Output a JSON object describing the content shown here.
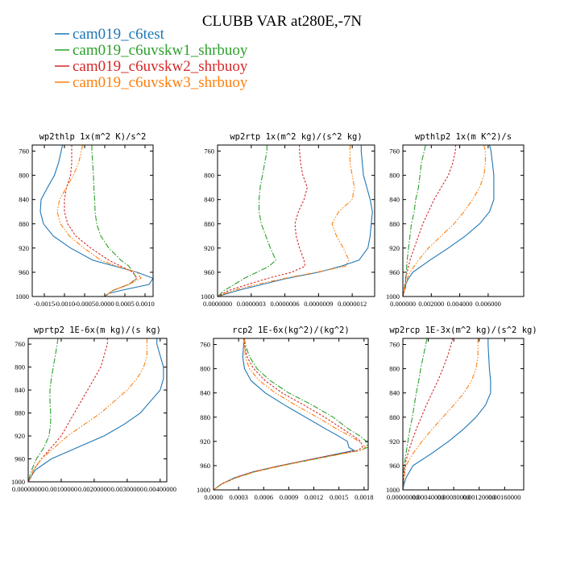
{
  "figure": {
    "title": "CLUBB VAR at280E,-7N"
  },
  "legend": [
    {
      "name": "cam019_c6test",
      "color": "#1f77b4"
    },
    {
      "name": "cam019_c6uvskw1_shrbuoy",
      "color": "#2ca02c"
    },
    {
      "name": "cam019_c6uvskw2_shrbuoy",
      "color": "#d62728"
    },
    {
      "name": "cam019_c6uvskw3_shrbuoy",
      "color": "#ff7f0e"
    }
  ],
  "chart_data": [
    {
      "type": "line",
      "title": "wp2thlp  1x(m^2 K)/s^2",
      "xlim": [
        -0.0018,
        0.0012
      ],
      "ylim": [
        1000,
        750
      ],
      "y_reversed": true,
      "xticks": [
        -0.0015,
        -0.001,
        -0.0005,
        0.0,
        0.0005,
        0.001
      ],
      "xtick_labels": [
        "-0.0015",
        "-0.0010",
        "-0.0005",
        "0.0000",
        "0.0005",
        "0.0010"
      ],
      "yticks": [
        760,
        800,
        840,
        880,
        920,
        960,
        1000
      ],
      "ytick_labels": [
        "760",
        "800",
        "840",
        "880",
        "920",
        "960",
        "1000"
      ],
      "y": [
        750,
        760,
        780,
        800,
        820,
        840,
        860,
        880,
        900,
        920,
        940,
        950,
        960,
        970,
        980,
        990,
        995,
        1000
      ],
      "series": [
        {
          "values": [
            -0.00105,
            -0.00108,
            -0.00115,
            -0.00125,
            -0.00142,
            -0.00158,
            -0.0016,
            -0.00152,
            -0.00128,
            -0.00085,
            -0.0003,
            0.00025,
            0.0008,
            0.0012,
            0.0011,
            0.0004,
            0.0001,
            0.0
          ]
        },
        {
          "values": [
            -0.00032,
            -0.00032,
            -0.0003,
            -0.00028,
            -0.00027,
            -0.00025,
            -0.00024,
            -0.0002,
            -0.0001,
            0.0001,
            0.0004,
            0.0006,
            0.0007,
            0.0008,
            0.0006,
            0.0002,
            0.0001,
            0.0
          ]
        },
        {
          "values": [
            -0.00082,
            -0.00082,
            -0.00082,
            -0.00085,
            -0.00095,
            -0.001,
            -0.001,
            -0.00092,
            -0.00072,
            -0.00035,
            0.0001,
            0.0004,
            0.0007,
            0.0008,
            0.0006,
            0.0002,
            0.0001,
            0.0
          ]
        },
        {
          "values": [
            -0.00055,
            -0.00058,
            -0.00065,
            -0.00078,
            -0.00095,
            -0.00112,
            -0.00118,
            -0.0011,
            -0.00088,
            -0.00052,
            -0.0001,
            0.0003,
            0.0008,
            0.0009,
            0.0006,
            0.0002,
            0.0001,
            0.0
          ]
        }
      ]
    },
    {
      "type": "line",
      "title": "wp2rtp  1x(m^2 kg)/(s^2 kg)",
      "xlim": [
        0.0,
        1.4e-06
      ],
      "ylim": [
        1000,
        750
      ],
      "y_reversed": true,
      "xticks": [
        0.0,
        3e-07,
        6e-07,
        9e-07,
        1.2e-06
      ],
      "xtick_labels": [
        "0.0000000",
        "0.0000003",
        "0.0000006",
        "0.0000009",
        "0.0000012"
      ],
      "yticks": [
        760,
        800,
        840,
        880,
        920,
        960,
        1000
      ],
      "ytick_labels": [
        "760",
        "800",
        "840",
        "880",
        "920",
        "960",
        "1000"
      ],
      "y": [
        750,
        760,
        780,
        800,
        820,
        840,
        860,
        880,
        900,
        920,
        940,
        950,
        960,
        970,
        980,
        990,
        1000
      ],
      "series": [
        {
          "values": [
            1.28e-06,
            1.28e-06,
            1.29e-06,
            1.3e-06,
            1.33e-06,
            1.36e-06,
            1.38e-06,
            1.37e-06,
            1.36e-06,
            1.34e-06,
            1.26e-06,
            1.1e-06,
            9e-07,
            6.2e-07,
            4e-07,
            1.8e-07,
            0.0
          ]
        },
        {
          "values": [
            4.4e-07,
            4.4e-07,
            4.2e-07,
            4e-07,
            3.8e-07,
            3.7e-07,
            3.7e-07,
            3.9e-07,
            4.3e-07,
            4.7e-07,
            5.2e-07,
            4.6e-07,
            3.5e-07,
            2.4e-07,
            1.5e-07,
            6e-08,
            0.0
          ]
        },
        {
          "values": [
            7.3e-07,
            7.3e-07,
            7.4e-07,
            7.6e-07,
            8e-07,
            7.7e-07,
            7.2e-07,
            6.9e-07,
            7e-07,
            7.3e-07,
            7.7e-07,
            7.8e-07,
            6.6e-07,
            4.5e-07,
            2.7e-07,
            1e-07,
            0.0
          ]
        },
        {
          "values": [
            1.18e-06,
            1.18e-06,
            1.18e-06,
            1.2e-06,
            1.22e-06,
            1.2e-06,
            1.08e-06,
            1.02e-06,
            1.06e-06,
            1.12e-06,
            1.17e-06,
            1.14e-06,
            8.8e-07,
            6e-07,
            3.5e-07,
            1.4e-07,
            0.0
          ]
        }
      ]
    },
    {
      "type": "line",
      "title": "wpthlp2  1x(m K^2)/s",
      "xlim": [
        0.0,
        0.0085
      ],
      "ylim": [
        1000,
        750
      ],
      "y_reversed": true,
      "xticks": [
        0.0,
        0.002,
        0.004,
        0.006
      ],
      "xtick_labels": [
        "0.000000",
        "0.002000",
        "0.004000",
        "0.006000"
      ],
      "yticks": [
        760,
        800,
        840,
        880,
        920,
        960,
        1000
      ],
      "ytick_labels": [
        "760",
        "800",
        "840",
        "880",
        "920",
        "960",
        "1000"
      ],
      "y": [
        750,
        760,
        780,
        800,
        820,
        840,
        860,
        880,
        900,
        920,
        940,
        960,
        970,
        975,
        980,
        985,
        990,
        1000
      ],
      "series": [
        {
          "values": [
            0.0061,
            0.0062,
            0.0063,
            0.0064,
            0.0064,
            0.0064,
            0.0061,
            0.0054,
            0.0044,
            0.0032,
            0.0019,
            0.0007,
            0.0004,
            0.0003,
            0.0002,
            0.0002,
            0.0001,
            0.0
          ]
        },
        {
          "values": [
            0.0016,
            0.0015,
            0.0013,
            0.0012,
            0.0011,
            0.0009,
            0.0008,
            0.0006,
            0.0005,
            0.0004,
            0.0003,
            0.00025,
            0.0002,
            0.0002,
            0.00015,
            0.0001,
            0.0001,
            0.0
          ]
        },
        {
          "values": [
            0.0037,
            0.0037,
            0.0035,
            0.0032,
            0.0027,
            0.0022,
            0.0018,
            0.0014,
            0.0011,
            0.0008,
            0.0005,
            0.0003,
            0.0002,
            0.0002,
            0.00015,
            0.0001,
            0.0001,
            0.0
          ]
        },
        {
          "values": [
            0.0057,
            0.0058,
            0.0058,
            0.0057,
            0.0054,
            0.0049,
            0.0043,
            0.0036,
            0.0027,
            0.0018,
            0.0011,
            0.0005,
            0.0003,
            0.0003,
            0.0002,
            0.00015,
            0.0001,
            0.0
          ]
        }
      ]
    },
    {
      "type": "line",
      "title": "wprtp2  1E-6x(m kg)/(s kg)",
      "xlim": [
        0.0,
        0.0042
      ],
      "ylim": [
        1000,
        750
      ],
      "y_reversed": true,
      "xticks": [
        0.0,
        0.001,
        0.002,
        0.003,
        0.004
      ],
      "xtick_labels": [
        "0.00000000",
        "0.00100000",
        "0.00200000",
        "0.00300000",
        "0.00400000"
      ],
      "yticks": [
        760,
        800,
        840,
        880,
        920,
        960,
        1000
      ],
      "ytick_labels": [
        "760",
        "800",
        "840",
        "880",
        "920",
        "960",
        "1000"
      ],
      "y": [
        750,
        760,
        780,
        800,
        820,
        840,
        860,
        880,
        900,
        920,
        940,
        960,
        980,
        990,
        1000
      ],
      "series": [
        {
          "values": [
            0.0039,
            0.0039,
            0.004,
            0.0041,
            0.0041,
            0.004,
            0.0037,
            0.0034,
            0.0029,
            0.0023,
            0.0015,
            0.0007,
            0.0002,
            0.0001,
            0.0
          ]
        },
        {
          "values": [
            0.0009,
            0.00088,
            0.00082,
            0.00076,
            0.0007,
            0.00066,
            0.00066,
            0.00068,
            0.00068,
            0.00063,
            0.00048,
            0.00025,
            0.0001,
            5e-05,
            0.0
          ]
        },
        {
          "values": [
            0.0024,
            0.0024,
            0.0023,
            0.0022,
            0.002,
            0.0018,
            0.0016,
            0.0014,
            0.0012,
            0.001,
            0.0007,
            0.0004,
            0.00015,
            0.0001,
            0.0
          ]
        },
        {
          "values": [
            0.0036,
            0.0036,
            0.0036,
            0.0035,
            0.0033,
            0.003,
            0.0026,
            0.0022,
            0.0017,
            0.0012,
            0.0008,
            0.0004,
            0.00015,
            0.0001,
            0.0
          ]
        }
      ]
    },
    {
      "type": "line",
      "title": "rcp2  1E-6x(kg^2)/(kg^2)",
      "xlim": [
        0.0,
        0.00185
      ],
      "ylim": [
        1000,
        750
      ],
      "y_reversed": true,
      "xticks": [
        0.0,
        0.0003,
        0.0006,
        0.0009,
        0.0012,
        0.0015,
        0.0018
      ],
      "xtick_labels": [
        "0.0000",
        "0.0003",
        "0.0006",
        "0.0009",
        "0.0012",
        "0.0015",
        "0.0018"
      ],
      "yticks": [
        760,
        800,
        840,
        880,
        920,
        960,
        1000
      ],
      "ytick_labels": [
        "760",
        "800",
        "840",
        "880",
        "920",
        "960",
        "1000"
      ],
      "y": [
        750,
        760,
        780,
        800,
        820,
        840,
        860,
        880,
        900,
        910,
        920,
        930,
        935,
        940,
        950,
        960,
        970,
        980,
        990,
        1000
      ],
      "series": [
        {
          "values": [
            0.00037,
            0.00036,
            0.00035,
            0.00037,
            0.00045,
            0.00062,
            0.00085,
            0.0011,
            0.00135,
            0.00148,
            0.0016,
            0.00162,
            0.00168,
            0.0015,
            0.00115,
            0.0008,
            0.00048,
            0.00025,
            0.0001,
            0.0
          ]
        },
        {
          "values": [
            0.00037,
            0.00038,
            0.00043,
            0.00052,
            0.00068,
            0.0009,
            0.00118,
            0.00143,
            0.00162,
            0.00174,
            0.00183,
            0.00184,
            0.00175,
            0.00155,
            0.00118,
            0.00082,
            0.0005,
            0.00027,
            0.0001,
            0.0
          ]
        },
        {
          "values": [
            0.00036,
            0.00037,
            0.0004,
            0.00048,
            0.00062,
            0.00082,
            0.00108,
            0.00133,
            0.00155,
            0.00166,
            0.00176,
            0.00178,
            0.00172,
            0.00152,
            0.00115,
            0.0008,
            0.00048,
            0.00026,
            0.0001,
            0.0
          ]
        },
        {
          "values": [
            0.00037,
            0.00037,
            0.00038,
            0.00043,
            0.00055,
            0.00074,
            0.00098,
            0.00124,
            0.00148,
            0.00162,
            0.00174,
            0.00182,
            0.00176,
            0.00155,
            0.00118,
            0.00082,
            0.0005,
            0.00027,
            0.0001,
            0.0
          ]
        }
      ]
    },
    {
      "type": "line",
      "title": "wp2rcp  1E-3x(m^2 kg)/(s^2 kg)",
      "xlim": [
        0.0,
        0.0019
      ],
      "ylim": [
        1000,
        750
      ],
      "y_reversed": true,
      "xticks": [
        0.0,
        0.0004,
        0.0008,
        0.0012,
        0.0016
      ],
      "xtick_labels": [
        "0.00000000",
        "0.00040000",
        "0.00080000",
        "0.00120000",
        "0.00160000"
      ],
      "yticks": [
        760,
        800,
        840,
        880,
        920,
        960,
        1000
      ],
      "ytick_labels": [
        "760",
        "800",
        "840",
        "880",
        "920",
        "960",
        "1000"
      ],
      "y": [
        750,
        760,
        780,
        800,
        820,
        840,
        860,
        880,
        900,
        920,
        940,
        960,
        980,
        990,
        1000
      ],
      "series": [
        {
          "values": [
            0.00134,
            0.00134,
            0.00135,
            0.00136,
            0.00138,
            0.00138,
            0.0013,
            0.00115,
            0.00095,
            0.00072,
            0.00045,
            0.00016,
            5e-05,
            2e-05,
            0.0
          ]
        },
        {
          "values": [
            0.00038,
            0.00036,
            0.00032,
            0.00028,
            0.00025,
            0.00021,
            0.00018,
            0.00015,
            0.00011,
            8e-05,
            5e-05,
            2e-05,
            1e-05,
            1e-05,
            0.0
          ]
        },
        {
          "values": [
            0.00078,
            0.00076,
            0.0007,
            0.00063,
            0.00055,
            0.00046,
            0.00037,
            0.00029,
            0.00021,
            0.00014,
            8e-05,
            3e-05,
            1e-05,
            1e-05,
            0.0
          ]
        },
        {
          "values": [
            0.00118,
            0.00118,
            0.00118,
            0.00115,
            0.00108,
            0.00096,
            0.0008,
            0.00063,
            0.00046,
            0.0003,
            0.00016,
            5e-05,
            2e-05,
            1e-05,
            0.0
          ]
        }
      ]
    }
  ]
}
